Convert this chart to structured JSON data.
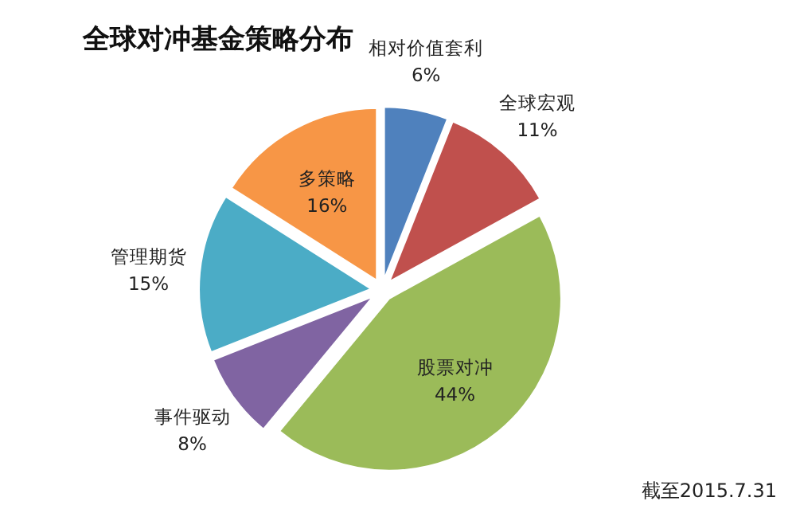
{
  "chart_data": {
    "type": "pie",
    "title": "全球对冲基金策略分布",
    "categories": [
      "相对价值套利",
      "全球宏观",
      "股票对冲",
      "事件驱动",
      "管理期货",
      "多策略"
    ],
    "values": [
      6,
      11,
      44,
      8,
      15,
      16
    ],
    "colors": [
      "#4f81bd",
      "#c0504d",
      "#9bbb59",
      "#8064a2",
      "#4bacc6",
      "#f79646"
    ],
    "value_labels": [
      "6%",
      "11%",
      "44%",
      "8%",
      "15%",
      "16%"
    ],
    "annotations": [
      "截至2015.7.31"
    ]
  }
}
